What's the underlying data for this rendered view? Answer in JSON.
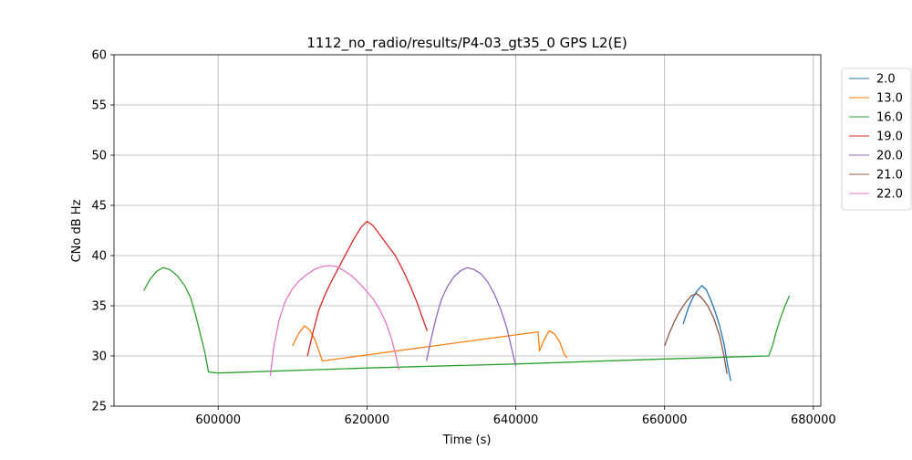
{
  "chart_data": {
    "type": "line",
    "title": "1112_no_radio/results/P4-03_gt35_0 GPS L2(E)",
    "xlabel": "Time (s)",
    "ylabel": "CNo dB Hz",
    "xlim": [
      586000,
      681000
    ],
    "ylim": [
      25,
      60
    ],
    "x_ticks": [
      600000,
      620000,
      640000,
      660000,
      680000
    ],
    "x_tick_labels": [
      "600000",
      "620000",
      "640000",
      "660000",
      "680000"
    ],
    "y_ticks": [
      25,
      30,
      35,
      40,
      45,
      50,
      55,
      60
    ],
    "y_tick_labels": [
      "25",
      "30",
      "35",
      "40",
      "45",
      "50",
      "55",
      "60"
    ],
    "grid": true,
    "legend_position": "outside-right-top",
    "series": [
      {
        "name": "2.0",
        "color": "#1f77b4",
        "points": [
          [
            662500,
            33.2
          ],
          [
            663200,
            34.8
          ],
          [
            663800,
            35.8
          ],
          [
            664400,
            36.5
          ],
          [
            665000,
            37.0
          ],
          [
            665600,
            36.6
          ],
          [
            666200,
            35.6
          ],
          [
            666800,
            34.4
          ],
          [
            667400,
            33.0
          ],
          [
            668000,
            31.2
          ],
          [
            668500,
            29.0
          ],
          [
            668900,
            27.5
          ]
        ]
      },
      {
        "name": "13.0",
        "color": "#ff7f0e",
        "points": [
          [
            610000,
            31.0
          ],
          [
            610800,
            32.2
          ],
          [
            611600,
            33.0
          ],
          [
            612300,
            32.6
          ],
          [
            613000,
            31.6
          ],
          [
            613600,
            30.4
          ],
          [
            614000,
            29.5
          ],
          [
            643000,
            32.4
          ],
          [
            643200,
            30.5
          ],
          [
            643800,
            31.6
          ],
          [
            644500,
            32.5
          ],
          [
            645200,
            32.2
          ],
          [
            645900,
            31.4
          ],
          [
            646500,
            30.2
          ],
          [
            646900,
            29.8
          ]
        ]
      },
      {
        "name": "16.0",
        "color": "#2ca02c",
        "points": [
          [
            590000,
            36.5
          ],
          [
            590800,
            37.6
          ],
          [
            591700,
            38.4
          ],
          [
            592600,
            38.8
          ],
          [
            593500,
            38.6
          ],
          [
            594500,
            38.0
          ],
          [
            595500,
            37.0
          ],
          [
            596300,
            35.8
          ],
          [
            597000,
            34.0
          ],
          [
            597600,
            32.2
          ],
          [
            598200,
            30.4
          ],
          [
            598700,
            28.4
          ],
          [
            600000,
            28.3
          ],
          [
            620000,
            28.8
          ],
          [
            640000,
            29.2
          ],
          [
            660000,
            29.7
          ],
          [
            674000,
            30.0
          ],
          [
            674500,
            31.0
          ],
          [
            675000,
            32.4
          ],
          [
            675600,
            33.8
          ],
          [
            676200,
            35.0
          ],
          [
            676800,
            36.0
          ]
        ]
      },
      {
        "name": "19.0",
        "color": "#d62728",
        "points": [
          [
            612000,
            30.0
          ],
          [
            612800,
            32.5
          ],
          [
            613500,
            34.5
          ],
          [
            614300,
            36.0
          ],
          [
            615200,
            37.4
          ],
          [
            616200,
            38.8
          ],
          [
            617200,
            40.2
          ],
          [
            618200,
            41.6
          ],
          [
            619200,
            42.8
          ],
          [
            620000,
            43.4
          ],
          [
            620800,
            43.0
          ],
          [
            621800,
            42.0
          ],
          [
            622800,
            41.0
          ],
          [
            623800,
            40.0
          ],
          [
            624800,
            38.6
          ],
          [
            625800,
            37.0
          ],
          [
            626800,
            35.2
          ],
          [
            627600,
            33.5
          ],
          [
            628100,
            32.5
          ]
        ]
      },
      {
        "name": "20.0",
        "color": "#9467bd",
        "points": [
          [
            628000,
            29.5
          ],
          [
            628600,
            31.6
          ],
          [
            629300,
            33.8
          ],
          [
            630000,
            35.6
          ],
          [
            630800,
            36.9
          ],
          [
            631700,
            37.9
          ],
          [
            632600,
            38.5
          ],
          [
            633500,
            38.8
          ],
          [
            634400,
            38.6
          ],
          [
            635300,
            38.2
          ],
          [
            636200,
            37.4
          ],
          [
            637100,
            36.2
          ],
          [
            638000,
            34.6
          ],
          [
            638800,
            32.8
          ],
          [
            639500,
            30.6
          ],
          [
            640000,
            29.0
          ]
        ]
      },
      {
        "name": "21.0",
        "color": "#8c564b",
        "points": [
          [
            660000,
            31.0
          ],
          [
            660600,
            32.2
          ],
          [
            661300,
            33.4
          ],
          [
            662000,
            34.4
          ],
          [
            662800,
            35.3
          ],
          [
            663600,
            36.0
          ],
          [
            664300,
            36.2
          ],
          [
            665000,
            35.8
          ],
          [
            665800,
            35.0
          ],
          [
            666600,
            33.8
          ],
          [
            667400,
            32.0
          ],
          [
            668000,
            30.0
          ],
          [
            668400,
            28.2
          ]
        ]
      },
      {
        "name": "22.0",
        "color": "#e377c2",
        "points": [
          [
            607000,
            28.0
          ],
          [
            607500,
            31.0
          ],
          [
            608200,
            33.6
          ],
          [
            609000,
            35.4
          ],
          [
            609900,
            36.6
          ],
          [
            610900,
            37.5
          ],
          [
            611900,
            38.1
          ],
          [
            612900,
            38.6
          ],
          [
            613900,
            38.9
          ],
          [
            614900,
            39.0
          ],
          [
            615900,
            38.9
          ],
          [
            616900,
            38.5
          ],
          [
            617900,
            38.0
          ],
          [
            618900,
            37.3
          ],
          [
            619900,
            36.5
          ],
          [
            620900,
            35.6
          ],
          [
            621800,
            34.5
          ],
          [
            622600,
            33.2
          ],
          [
            623300,
            31.7
          ],
          [
            623900,
            30.0
          ],
          [
            624300,
            28.6
          ]
        ]
      }
    ]
  }
}
